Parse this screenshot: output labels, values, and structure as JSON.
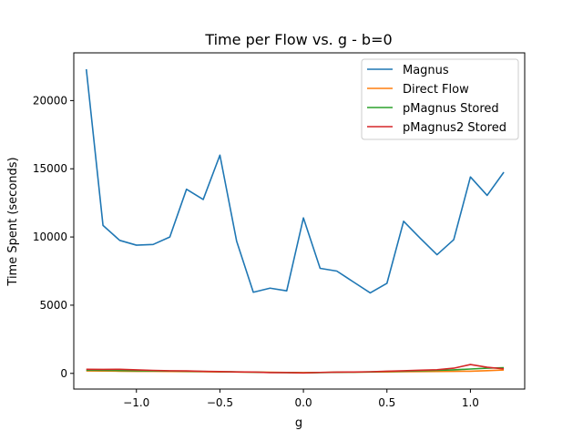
{
  "chart_data": {
    "type": "line",
    "title": "Time per Flow vs. g - b=0",
    "xlabel": "g",
    "ylabel": "Time Spent (seconds)",
    "xlim": [
      -1.375,
      1.325
    ],
    "ylim": [
      -1150,
      23500
    ],
    "xticks": [
      -1.0,
      -0.5,
      0.0,
      0.5,
      1.0
    ],
    "xtick_labels": [
      "−1.0",
      "−0.5",
      "0.0",
      "0.5",
      "1.0"
    ],
    "yticks": [
      0,
      5000,
      10000,
      15000,
      20000
    ],
    "ytick_labels": [
      "0",
      "5000",
      "10000",
      "15000",
      "20000"
    ],
    "grid": false,
    "legend_position": "top-right",
    "x": [
      -1.3,
      -1.2,
      -1.1,
      -1.0,
      -0.9,
      -0.8,
      -0.7,
      -0.6,
      -0.5,
      -0.4,
      -0.3,
      -0.2,
      -0.1,
      0.0,
      0.1,
      0.2,
      0.3,
      0.4,
      0.5,
      0.6,
      0.7,
      0.8,
      0.9,
      1.0,
      1.1,
      1.2
    ],
    "series": [
      {
        "name": "Magnus",
        "color": "#1f77b4",
        "values": [
          22300,
          10850,
          9750,
          9400,
          9450,
          10000,
          13500,
          12750,
          16000,
          9700,
          5950,
          6250,
          6050,
          11400,
          7700,
          7500,
          6700,
          5900,
          6600,
          11150,
          9900,
          8700,
          9800,
          14400,
          13050,
          14750
        ]
      },
      {
        "name": "Direct Flow",
        "color": "#ff7f0e",
        "values": [
          180,
          170,
          160,
          150,
          150,
          140,
          130,
          120,
          110,
          100,
          90,
          80,
          70,
          60,
          70,
          80,
          90,
          100,
          110,
          120,
          130,
          140,
          150,
          160,
          200,
          250
        ]
      },
      {
        "name": "pMagnus Stored",
        "color": "#2ca02c",
        "values": [
          230,
          220,
          210,
          190,
          180,
          170,
          160,
          140,
          120,
          110,
          90,
          70,
          60,
          40,
          60,
          80,
          90,
          110,
          140,
          160,
          190,
          220,
          260,
          320,
          380,
          420
        ]
      },
      {
        "name": "pMagnus2 Stored",
        "color": "#d62728",
        "values": [
          300,
          290,
          300,
          260,
          220,
          190,
          180,
          150,
          130,
          110,
          100,
          60,
          60,
          30,
          70,
          90,
          100,
          120,
          160,
          190,
          230,
          270,
          380,
          650,
          450,
          330
        ]
      }
    ]
  }
}
